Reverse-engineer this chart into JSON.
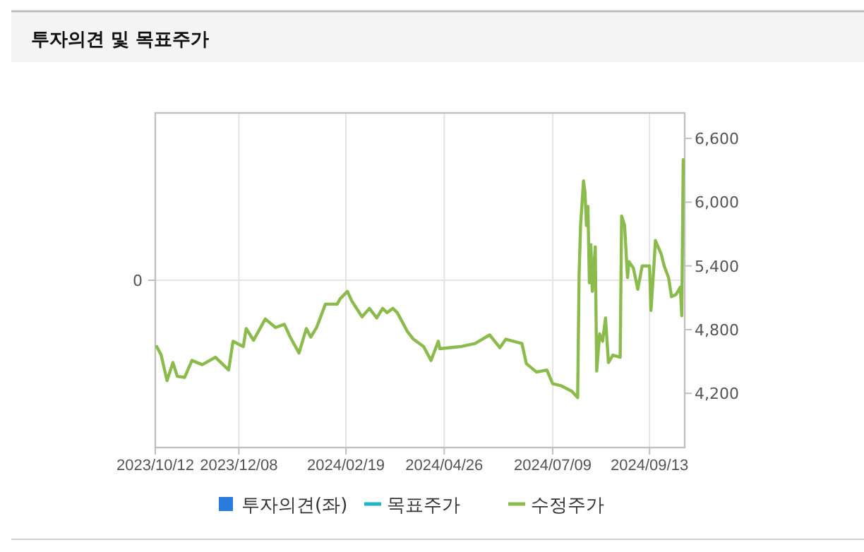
{
  "chart_data": {
    "type": "line",
    "title": "투자의견 및 목표주가",
    "x": [
      "2023-10-13",
      "2023-10-16",
      "2023-10-20",
      "2023-10-24",
      "2023-10-27",
      "2023-11-01",
      "2023-11-06",
      "2023-11-13",
      "2023-11-22",
      "2023-12-01",
      "2023-12-04",
      "2023-12-11",
      "2023-12-13",
      "2023-12-18",
      "2023-12-26",
      "2024-01-02",
      "2024-01-08",
      "2024-01-12",
      "2024-01-18",
      "2024-01-23",
      "2024-01-26",
      "2024-01-30",
      "2024-02-05",
      "2024-02-13",
      "2024-02-15",
      "2024-02-20",
      "2024-02-23",
      "2024-03-01",
      "2024-03-06",
      "2024-03-11",
      "2024-03-15",
      "2024-03-18",
      "2024-03-22",
      "2024-03-25",
      "2024-04-01",
      "2024-04-05",
      "2024-04-12",
      "2024-04-17",
      "2024-04-22",
      "2024-04-23",
      "2024-05-07",
      "2024-05-17",
      "2024-05-27",
      "2024-06-03",
      "2024-06-07",
      "2024-06-18",
      "2024-06-21",
      "2024-06-28",
      "2024-07-05",
      "2024-07-09",
      "2024-07-15",
      "2024-07-22",
      "2024-07-26",
      "2024-07-27",
      "2024-07-28",
      "2024-07-30",
      "2024-07-31",
      "2024-08-01",
      "2024-08-02",
      "2024-08-03",
      "2024-08-04",
      "2024-08-05",
      "2024-08-07",
      "2024-08-08",
      "2024-08-10",
      "2024-08-12",
      "2024-08-14",
      "2024-08-16",
      "2024-08-19",
      "2024-08-24",
      "2024-08-25",
      "2024-08-27",
      "2024-08-29",
      "2024-08-30",
      "2024-09-02",
      "2024-09-05",
      "2024-09-08",
      "2024-09-13",
      "2024-09-14",
      "2024-09-16",
      "2024-09-17",
      "2024-09-21",
      "2024-09-23",
      "2024-09-26",
      "2024-09-28",
      "2024-10-01",
      "2024-10-04",
      "2024-10-05",
      "2024-10-06"
    ],
    "series": [
      {
        "name": "투자의견(좌)",
        "type": "bar",
        "color": "#2b7bdc",
        "values": [
          null,
          null,
          null,
          null,
          null,
          null,
          null,
          null,
          null,
          null,
          null,
          null,
          null,
          null,
          null,
          null,
          null,
          null,
          null,
          null,
          null,
          null,
          null,
          null,
          null,
          null,
          null,
          null,
          null,
          null,
          null,
          null,
          null,
          null,
          null,
          null,
          null,
          null,
          null,
          null,
          null,
          null,
          null,
          null,
          null,
          null,
          null,
          null,
          null,
          null,
          null,
          null,
          null,
          null,
          null,
          null,
          null,
          null,
          null,
          null,
          null,
          null,
          null,
          null,
          null,
          null,
          null,
          null,
          null,
          null,
          null,
          null,
          null,
          null,
          null,
          null,
          null,
          null,
          null,
          null,
          null,
          null,
          null,
          null,
          null,
          null,
          null,
          null,
          null
        ]
      },
      {
        "name": "목표주가",
        "type": "line",
        "color": "#1fb5c8",
        "values": [
          null,
          null,
          null,
          null,
          null,
          null,
          null,
          null,
          null,
          null,
          null,
          null,
          null,
          null,
          null,
          null,
          null,
          null,
          null,
          null,
          null,
          null,
          null,
          null,
          null,
          null,
          null,
          null,
          null,
          null,
          null,
          null,
          null,
          null,
          null,
          null,
          null,
          null,
          null,
          null,
          null,
          null,
          null,
          null,
          null,
          null,
          null,
          null,
          null,
          null,
          null,
          null,
          null,
          null,
          null,
          null,
          null,
          null,
          null,
          null,
          null,
          null,
          null,
          null,
          null,
          null,
          null,
          null,
          null,
          null,
          null,
          null,
          null,
          null,
          null,
          null,
          null,
          null,
          null,
          null,
          null,
          null,
          null,
          null,
          null,
          null,
          null,
          null,
          null
        ]
      },
      {
        "name": "수정주가",
        "color": "#8bbb4c",
        "axis": "y2",
        "values": [
          4640,
          4560,
          4320,
          4490,
          4360,
          4350,
          4510,
          4470,
          4540,
          4420,
          4690,
          4640,
          4810,
          4700,
          4900,
          4820,
          4850,
          4730,
          4580,
          4810,
          4730,
          4820,
          5040,
          5040,
          5090,
          5160,
          5070,
          4920,
          5000,
          4910,
          5000,
          4960,
          5000,
          4960,
          4780,
          4710,
          4640,
          4510,
          4690,
          4620,
          4640,
          4670,
          4750,
          4630,
          4710,
          4670,
          4480,
          4400,
          4420,
          4290,
          4270,
          4220,
          4160,
          5330,
          5780,
          6200,
          6090,
          5780,
          5960,
          5240,
          5600,
          5160,
          5580,
          4410,
          4760,
          4690,
          4910,
          4490,
          4560,
          4540,
          5870,
          5780,
          5290,
          5440,
          5380,
          5180,
          5400,
          5400,
          4980,
          5400,
          5640,
          5510,
          5400,
          5290,
          5110,
          5130,
          5200,
          4930,
          6400
        ]
      }
    ],
    "xlim": [
      "2023-10-12",
      "2024-10-07"
    ],
    "xticks": [
      {
        "value": "2023-10-12",
        "label": "2023/10/12"
      },
      {
        "value": "2023-12-08",
        "label": "2023/12/08"
      },
      {
        "value": "2024-02-19",
        "label": "2024/02/19"
      },
      {
        "value": "2024-04-26",
        "label": "2024/04/26"
      },
      {
        "value": "2024-07-09",
        "label": "2024/07/09"
      },
      {
        "value": "2024-09-13",
        "label": "2024/09/13"
      }
    ],
    "annotations": [
      "0"
    ],
    "y2lim": [
      3690,
      6840
    ],
    "y2ticks": [
      {
        "value": 4200,
        "label": "4,200"
      },
      {
        "value": 4800,
        "label": "4,800"
      },
      {
        "value": 5400,
        "label": "5,400"
      },
      {
        "value": 6000,
        "label": "6,000"
      },
      {
        "value": 6600,
        "label": "6,600"
      }
    ],
    "grid": "x",
    "legend": "bottom"
  }
}
